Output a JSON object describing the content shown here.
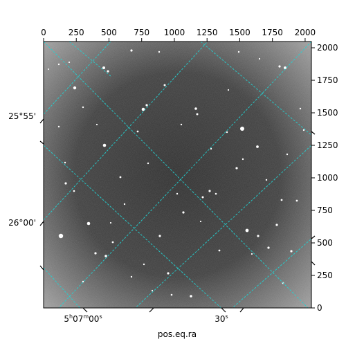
{
  "chart_data": {
    "type": "image",
    "xlabel": "pos.eq.ra",
    "pixel_axes": {
      "x_range": [
        0,
        2048
      ],
      "y_range": [
        0,
        2048
      ],
      "top_ticks": [
        "0",
        "250",
        "500",
        "750",
        "1000",
        "1250",
        "1500",
        "1750",
        "2000"
      ],
      "right_ticks": [
        "0",
        "250",
        "500",
        "750",
        "1000",
        "1250",
        "1500",
        "1750",
        "2000"
      ]
    },
    "world_axes": {
      "ra_ticks": [
        {
          "id": "ra-0700",
          "h": "5",
          "m": "07",
          "s": "00"
        },
        {
          "id": "ra-30s",
          "s": "30"
        }
      ],
      "dec_ticks": [
        {
          "id": "dec-2555",
          "label": "25°55'"
        },
        {
          "id": "dec-2600",
          "label": "26°00'"
        }
      ]
    },
    "grid": true,
    "grid_color": "#22d3d3",
    "colormap": "gray",
    "background_gradient": [
      "#2a2a2a",
      "#9a9a9a"
    ],
    "star_color": "#ffffff"
  }
}
